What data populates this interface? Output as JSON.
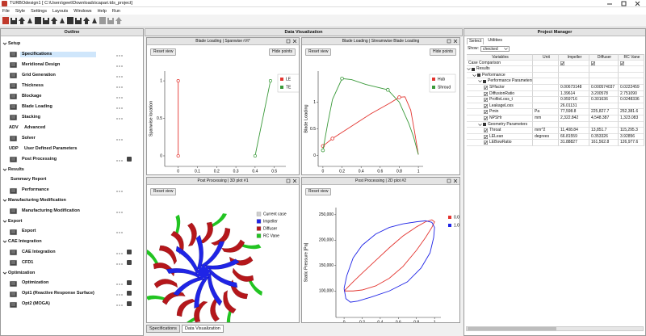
{
  "window": {
    "title": "TURBOdesign1 [ C:\\Users\\geet\\Downloads\\capari.tds_project]",
    "menu": [
      "File",
      "Style",
      "Settings",
      "Layouts",
      "Windows",
      "Help",
      "Run"
    ]
  },
  "outline": {
    "title": "Outline",
    "sections": [
      {
        "label": "Setup",
        "items": [
          {
            "label": "Specifications",
            "selected": true,
            "menu": true
          },
          {
            "label": "Meridional Design",
            "menu": true
          },
          {
            "label": "Grid Generation",
            "menu": true
          },
          {
            "label": "Thickness",
            "menu": true
          },
          {
            "label": "Blockage",
            "menu": true
          },
          {
            "label": "Blade Loading",
            "menu": true
          },
          {
            "label": "Stacking",
            "menu": true
          },
          {
            "label": "Advanced",
            "icon": "ADV"
          },
          {
            "label": "Solver",
            "menu": true
          },
          {
            "label": "User Defined Parameters",
            "icon": "UDP"
          },
          {
            "label": "Post Processing",
            "menu": true,
            "tool": true
          }
        ]
      },
      {
        "label": "Results",
        "items": [
          {
            "label": "Summary Report",
            "plain": true
          },
          {
            "label": "Performance",
            "menu": true
          }
        ]
      },
      {
        "label": "Manufacturing Modification",
        "items": [
          {
            "label": "Manufacturing Modification",
            "menu": true
          }
        ]
      },
      {
        "label": "Export",
        "items": [
          {
            "label": "Export",
            "menu": true
          }
        ]
      },
      {
        "label": "CAE Integration",
        "items": [
          {
            "label": "CAE Integration",
            "menu": true,
            "tool": true
          },
          {
            "label": "CFD1",
            "menu": true,
            "tool": true
          }
        ]
      },
      {
        "label": "Optimization",
        "items": [
          {
            "label": "Optimization",
            "menu": true,
            "tool": true
          },
          {
            "label": "Opt1 (Reactive Response Surface)",
            "menu": true,
            "tool": true
          },
          {
            "label": "Opt2 (MOGA)",
            "menu": true,
            "tool": true
          }
        ]
      }
    ]
  },
  "data_visualization": {
    "title": "Data Visualization",
    "tabs": [
      "Specifications",
      "Data Visualization"
    ],
    "active_tab": 1,
    "panels": [
      {
        "title": "Blade Loading | Spanwise rVt*",
        "buttons": [
          "Reset view",
          "Hide points"
        ],
        "chart_data": {
          "type": "line",
          "x_label": "rVt*",
          "y_label": "Spanwise location",
          "xlim": [
            -0.07,
            0.56
          ],
          "ylim": [
            -0.14,
            1.13
          ],
          "xticks": [
            0,
            0.1,
            0.2,
            0.3,
            0.4,
            0.5
          ],
          "yticks": [
            0,
            0.5,
            1
          ],
          "legend": "upper right",
          "legend_frame": true,
          "series": [
            {
              "name": "LE",
              "color": "#e3342f",
              "x": [
                0,
                0
              ],
              "values": [
                0,
                1
              ],
              "markers": true
            },
            {
              "name": "TE",
              "color": "#3a9a3a",
              "x": [
                0.4,
                0.48
              ],
              "values": [
                0,
                1
              ],
              "markers": true
            }
          ]
        }
      },
      {
        "title": "Blade Loading | Streamwise Blade Loading",
        "buttons": [
          "Reset view",
          "Hide points"
        ],
        "chart_data": {
          "type": "line",
          "x_label": "Streamwise position",
          "y_label": "Blade Loading",
          "xlim": [
            -0.05,
            1.05
          ],
          "ylim": [
            -0.2,
            1.58
          ],
          "xticks": [
            0,
            0.2,
            0.4,
            0.6,
            0.8,
            1
          ],
          "yticks": [
            0,
            0.5,
            1
          ],
          "legend": "upper right",
          "legend_frame": true,
          "series": [
            {
              "name": "Hub",
              "color": "#e3342f",
              "x": [
                0,
                0.1,
                0.3,
                0.5,
                0.7,
                0.8,
                0.86,
                0.92,
                0.96,
                1
              ],
              "values": [
                0.18,
                0.32,
                0.55,
                0.78,
                0.98,
                1.09,
                1.1,
                0.85,
                0.45,
                0.02
              ],
              "points_x": [
                0,
                0.1,
                0.8
              ],
              "points_y": [
                0.18,
                0.32,
                1.09
              ]
            },
            {
              "name": "Shroud",
              "color": "#3a9a3a",
              "x": [
                0,
                0.05,
                0.1,
                0.2,
                0.3,
                0.45,
                0.68,
                0.8,
                0.9,
                0.95,
                1
              ],
              "values": [
                0.1,
                0.6,
                1.05,
                1.44,
                1.42,
                1.33,
                1.23,
                1.0,
                0.6,
                0.35,
                0.02
              ],
              "points_x": [
                0,
                0.2,
                0.68
              ],
              "points_y": [
                0.1,
                1.44,
                1.23
              ]
            }
          ]
        }
      },
      {
        "title": "Post Processing | 3D plot #1",
        "buttons": [
          "Reset view"
        ],
        "chart_data": {
          "type": "3d",
          "legend": "upper right",
          "series": [
            {
              "name": "Current case",
              "color": "#cfcfcf"
            },
            {
              "name": "Impeller",
              "color": "#1f24e6"
            },
            {
              "name": "Diffuser",
              "color": "#b5171b"
            },
            {
              "name": "RC Vane",
              "color": "#22c422"
            }
          ]
        }
      },
      {
        "title": "Post Processing | 2D plot #2",
        "buttons": [
          "Reset view"
        ],
        "chart_data": {
          "type": "line",
          "x_label": "Normalized meridional",
          "y_label": "Static Pressure [Pa]",
          "xlim": [
            -0.09,
            1.07
          ],
          "ylim": [
            48000,
            264000
          ],
          "xticks": [
            0,
            0.2,
            0.4,
            0.6,
            0.8,
            1
          ],
          "yticks": [
            {
              "value": 100000,
              "label": "100,000"
            },
            {
              "value": 150000,
              "label": "150,000"
            },
            {
              "value": 200000,
              "label": "200,000"
            },
            {
              "value": 250000,
              "label": "250,000"
            }
          ],
          "legend": "upper right",
          "legend_frame": false,
          "series": [
            {
              "name": "0.0",
              "color": "#e3342f",
              "x": [
                0,
                0.1,
                0.2,
                0.35,
                0.5,
                0.65,
                0.8,
                0.9,
                0.97,
                1,
                0.97,
                0.9,
                0.8,
                0.65,
                0.5,
                0.35,
                0.2,
                0.1,
                0
              ],
              "values": [
                100000,
                118000,
                135000,
                160000,
                185000,
                208000,
                226000,
                236000,
                240000,
                236000,
                225000,
                205000,
                180000,
                148000,
                125000,
                110000,
                102000,
                100000,
                100000
              ]
            },
            {
              "name": "1.0",
              "color": "#1f24e6",
              "x": [
                0,
                0.03,
                0.1,
                0.2,
                0.35,
                0.5,
                0.65,
                0.8,
                0.9,
                0.97,
                1,
                0.99,
                0.95,
                0.85,
                0.7,
                0.5,
                0.3,
                0.15,
                0.07,
                0.02,
                0
              ],
              "values": [
                105000,
                130000,
                165000,
                190000,
                212000,
                225000,
                232000,
                236000,
                238000,
                235000,
                225000,
                205000,
                175000,
                145000,
                118000,
                100000,
                88000,
                80000,
                78000,
                85000,
                105000
              ]
            }
          ]
        }
      }
    ]
  },
  "project_manager": {
    "title": "Project Manager",
    "tabs": [
      "Select",
      "Utilities"
    ],
    "show_label": "Show:",
    "show_value": "checked",
    "columns": [
      "Variables",
      "Unit",
      "Impeller",
      "Diffuser",
      "RC Vane"
    ],
    "case_comparison": "Case Comparison",
    "tree": [
      {
        "label": "Results",
        "children": [
          {
            "label": "Performance",
            "children": [
              {
                "label": "Performance Parameters",
                "children": [
                  {
                    "label": "SFfactor",
                    "values": [
                      "0.00673148",
                      "0.000574037",
                      "0.0222459"
                    ]
                  },
                  {
                    "label": "DiffusionRatio",
                    "values": [
                      "1.39614",
                      "3.200578",
                      "2.751090"
                    ]
                  },
                  {
                    "label": "ProfileLoss_t",
                    "values": [
                      "0.959716",
                      "0.301636",
                      "0.0248336"
                    ]
                  },
                  {
                    "label": "LeakageLoss",
                    "values": [
                      "26.01131"
                    ]
                  },
                  {
                    "label": "Pmin",
                    "unit": "Pa",
                    "values": [
                      "77,598.8",
                      "225,827.7",
                      "252,381.6"
                    ]
                  },
                  {
                    "label": "NPSHr",
                    "unit": "mm",
                    "values": [
                      "2,322.842",
                      "4,548.387",
                      "1,323.083"
                    ]
                  }
                ]
              },
              {
                "label": "Geometry Parameters",
                "children": [
                  {
                    "label": "Throat",
                    "unit": "mm^2",
                    "values": [
                      "11,408.84",
                      "13,851.7",
                      "115,295.3"
                    ]
                  },
                  {
                    "label": "LELean",
                    "unit": "degrees",
                    "values": [
                      "66.81559",
                      "0.353326",
                      "3.92856"
                    ]
                  },
                  {
                    "label": "LEBowRatio",
                    "values": [
                      "31.88827",
                      "161,562.8",
                      "126,977.6"
                    ]
                  }
                ]
              }
            ]
          }
        ]
      }
    ]
  }
}
